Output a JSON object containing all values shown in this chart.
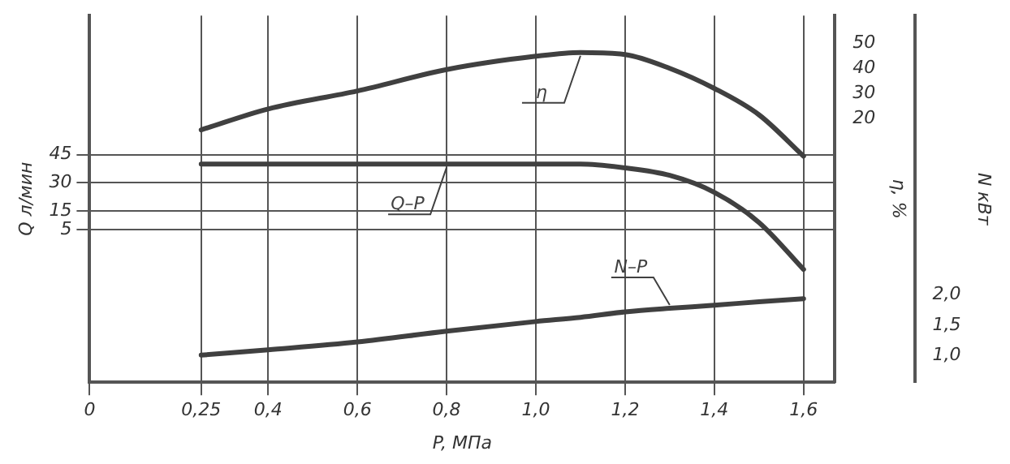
{
  "chart_data": {
    "type": "line",
    "xlabel": "P, МПа",
    "ylabel": "Q л/мин",
    "y2label": "η, %",
    "y3label": "N кВт",
    "xlim": [
      0,
      1.67
    ],
    "xticks": [
      0,
      {
        "value": 0.25,
        "label": "0,25"
      },
      {
        "value": 0.4,
        "label": "0,4"
      },
      {
        "value": 0.6,
        "label": "0,6"
      },
      {
        "value": 0.8,
        "label": "0,8"
      },
      {
        "value": 1.0,
        "label": "1,0"
      },
      {
        "value": 1.2,
        "label": "1,2"
      },
      {
        "value": 1.4,
        "label": "1,4"
      },
      {
        "value": 1.6,
        "label": "1,6"
      }
    ],
    "ylim": [
      -76,
      119
    ],
    "yticks": [
      45,
      30,
      15,
      5
    ],
    "y2lim": [
      -85,
      61
    ],
    "y2ticks": [
      50,
      40,
      30,
      20
    ],
    "y3lim": [
      0.55,
      6.65
    ],
    "y3ticks": [
      {
        "value": 2.0,
        "label": "2,0"
      },
      {
        "value": 1.5,
        "label": "1,5"
      },
      {
        "value": 1.0,
        "label": "1,0"
      }
    ],
    "x": [
      0.25,
      0.4,
      0.6,
      0.8,
      1.0,
      1.1,
      1.2,
      1.3,
      1.4,
      1.5,
      1.6
    ],
    "series": [
      {
        "name": "η",
        "color": "#404040",
        "axis": "y2",
        "values": [
          15.5,
          23.8,
          31,
          39.5,
          44.8,
          46.3,
          45.5,
          40,
          32,
          21.5,
          5
        ]
      },
      {
        "name": "Q–P",
        "color": "#404040",
        "axis": "y",
        "values": [
          40,
          40,
          40,
          40,
          40,
          40,
          38,
          34,
          25,
          9,
          -16
        ]
      },
      {
        "name": "N–P",
        "color": "#404040",
        "axis": "y3",
        "values": [
          1.0,
          1.09,
          1.22,
          1.4,
          1.56,
          1.63,
          1.72,
          1.78,
          1.83,
          1.89,
          1.94
        ]
      }
    ],
    "grid": true,
    "legend": false,
    "marker": "none",
    "line_style": "solid"
  }
}
